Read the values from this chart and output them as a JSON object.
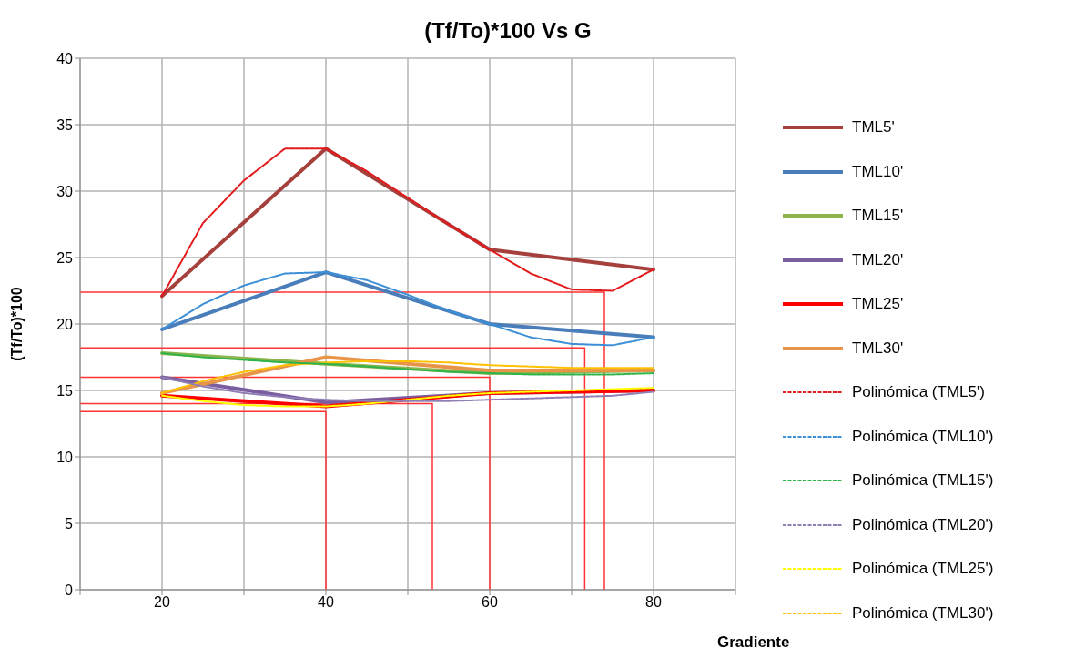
{
  "chart_data": {
    "type": "line",
    "title": "(Tf/To)*100 Vs G",
    "xlabel": "Gradiente",
    "ylabel": "(Tf/To)*100",
    "x": [
      20,
      40,
      60,
      80
    ],
    "xlim": [
      10,
      90
    ],
    "xticks": [
      {
        "value": 10,
        "label": null
      },
      20,
      {
        "value": 30,
        "label": null
      },
      40,
      {
        "value": 50,
        "label": null
      },
      60,
      {
        "value": 70,
        "label": null
      },
      80,
      {
        "value": 90,
        "label": null
      }
    ],
    "ylim": [
      0,
      40
    ],
    "yticks": [
      0,
      5,
      10,
      15,
      20,
      25,
      30,
      35,
      40
    ],
    "grid": true,
    "legend": "right",
    "marker": "none",
    "line_style": "solid",
    "series": [
      {
        "name": "TML5'",
        "color": "#a5403d",
        "values": [
          22.1,
          33.2,
          25.6,
          24.1
        ]
      },
      {
        "name": "TML10'",
        "color": "#4a7ebb",
        "values": [
          19.6,
          23.9,
          20.0,
          19.0
        ]
      },
      {
        "name": "TML15'",
        "color": "#8db54b",
        "values": [
          17.8,
          17.0,
          16.3,
          16.5
        ]
      },
      {
        "name": "TML20'",
        "color": "#7a5ea0",
        "values": [
          16.0,
          14.1,
          14.8,
          15.0
        ]
      },
      {
        "name": "TML25'",
        "color": "#ff0000",
        "values": [
          14.6,
          13.8,
          14.8,
          15.0
        ]
      },
      {
        "name": "TML30'",
        "color": "#e8954a",
        "values": [
          14.8,
          17.5,
          16.5,
          16.5
        ]
      },
      {
        "name": "Polinómica (TML5')",
        "type": "line",
        "line_style": "dashed",
        "color": "#e31a1c",
        "x": [
          20,
          25,
          30,
          35,
          40,
          45,
          50,
          55,
          60,
          65,
          70,
          75,
          80
        ],
        "values": [
          22.1,
          27.6,
          30.8,
          33.2,
          33.2,
          31.5,
          29.5,
          27.5,
          25.6,
          23.8,
          22.6,
          22.5,
          24.1
        ]
      },
      {
        "name": "Polinómica (TML10')",
        "type": "line",
        "line_style": "dashed",
        "color": "#3b8fd6",
        "x": [
          20,
          25,
          30,
          35,
          40,
          45,
          50,
          55,
          60,
          65,
          70,
          75,
          80
        ],
        "values": [
          19.6,
          21.5,
          22.9,
          23.8,
          23.9,
          23.3,
          22.2,
          21.0,
          20.0,
          19.0,
          18.5,
          18.4,
          19.0
        ]
      },
      {
        "name": "Polinómica (TML15')",
        "type": "line",
        "line_style": "dashed",
        "color": "#2fb34a",
        "x": [
          20,
          25,
          30,
          35,
          40,
          45,
          50,
          55,
          60,
          65,
          70,
          75,
          80
        ],
        "values": [
          17.8,
          17.5,
          17.3,
          17.1,
          17.0,
          16.8,
          16.6,
          16.4,
          16.3,
          16.2,
          16.2,
          16.2,
          16.3
        ]
      },
      {
        "name": "Polinómica (TML20')",
        "type": "line",
        "line_style": "dashed",
        "color": "#8f7fb5",
        "x": [
          20,
          25,
          30,
          35,
          40,
          45,
          50,
          55,
          60,
          65,
          70,
          75,
          80
        ],
        "values": [
          16.0,
          15.3,
          14.8,
          14.5,
          14.3,
          14.2,
          14.2,
          14.2,
          14.3,
          14.4,
          14.5,
          14.6,
          14.9
        ]
      },
      {
        "name": "Polinómica (TML25')",
        "type": "line",
        "line_style": "dashed",
        "color": "#ffff00",
        "x": [
          20,
          25,
          30,
          35,
          40,
          45,
          50,
          55,
          60,
          65,
          70,
          75,
          80
        ],
        "values": [
          14.6,
          14.2,
          13.9,
          13.8,
          13.8,
          14.0,
          14.3,
          14.6,
          14.8,
          14.9,
          15.0,
          15.1,
          15.2
        ]
      },
      {
        "name": "Polinómica (TML30')",
        "type": "line",
        "line_style": "dashed",
        "color": "#ffc000",
        "x": [
          20,
          25,
          30,
          35,
          40,
          45,
          50,
          55,
          60,
          65,
          70,
          75,
          80
        ],
        "values": [
          14.8,
          15.7,
          16.4,
          16.9,
          17.1,
          17.2,
          17.2,
          17.1,
          16.9,
          16.8,
          16.7,
          16.7,
          16.7
        ]
      },
      {
        "type": "line",
        "color": "#ff3333",
        "x": [
          10,
          74,
          74
        ],
        "values": [
          22.4,
          22.4,
          0
        ]
      },
      {
        "type": "line",
        "color": "#ff3333",
        "x": [
          10,
          71.6,
          71.6
        ],
        "values": [
          18.2,
          18.2,
          0
        ]
      },
      {
        "type": "line",
        "color": "#ff3333",
        "x": [
          10,
          60,
          60
        ],
        "values": [
          16.0,
          16.0,
          0
        ]
      },
      {
        "type": "line",
        "color": "#ff3333",
        "x": [
          10,
          53,
          53
        ],
        "values": [
          14.0,
          14.0,
          0
        ]
      },
      {
        "type": "line",
        "color": "#ff3333",
        "x": [
          10,
          40,
          40
        ],
        "values": [
          13.4,
          13.4,
          0
        ]
      }
    ]
  }
}
